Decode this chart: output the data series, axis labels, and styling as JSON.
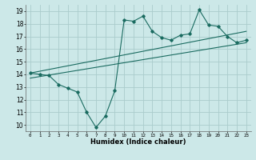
{
  "title": "",
  "xlabel": "Humidex (Indice chaleur)",
  "ylabel": "",
  "xlim": [
    -0.5,
    23.5
  ],
  "ylim": [
    9.5,
    19.5
  ],
  "xticks": [
    0,
    1,
    2,
    3,
    4,
    5,
    6,
    7,
    8,
    9,
    10,
    11,
    12,
    13,
    14,
    15,
    16,
    17,
    18,
    19,
    20,
    21,
    22,
    23
  ],
  "yticks": [
    10,
    11,
    12,
    13,
    14,
    15,
    16,
    17,
    18,
    19
  ],
  "bg_color": "#cce8e8",
  "grid_color": "#aacccc",
  "line_color": "#1a6b60",
  "main_x": [
    0,
    1,
    2,
    3,
    4,
    5,
    6,
    7,
    8,
    9,
    10,
    11,
    12,
    13,
    14,
    15,
    16,
    17,
    18,
    19,
    20,
    21,
    22,
    23
  ],
  "main_y": [
    14.1,
    14.0,
    13.9,
    13.2,
    12.9,
    12.6,
    11.0,
    9.8,
    10.7,
    12.7,
    18.3,
    18.2,
    18.6,
    17.4,
    16.9,
    16.7,
    17.1,
    17.2,
    19.1,
    17.9,
    17.8,
    17.0,
    16.5,
    16.7
  ],
  "trend1_x": [
    0,
    23
  ],
  "trend1_y": [
    14.1,
    17.4
  ],
  "trend2_x": [
    0,
    23
  ],
  "trend2_y": [
    13.7,
    16.5
  ]
}
